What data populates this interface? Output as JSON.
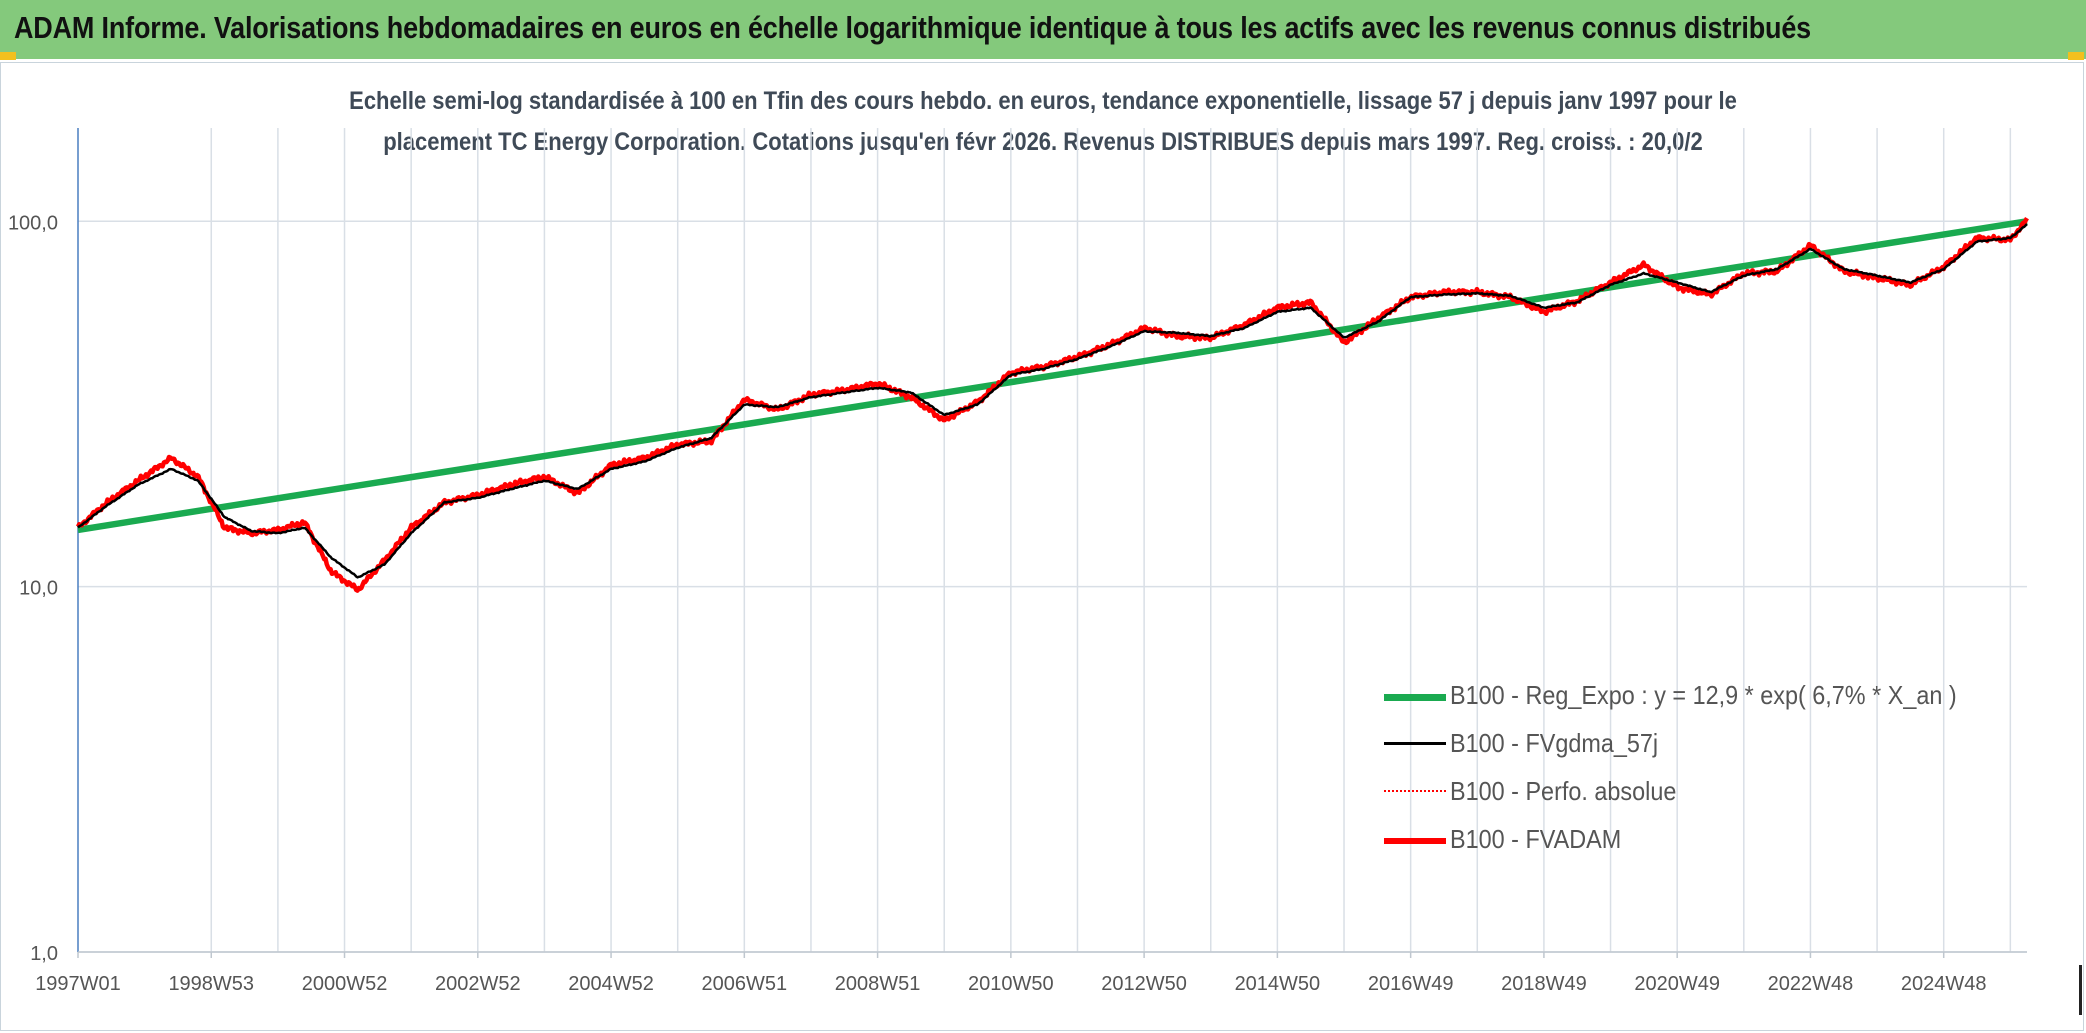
{
  "banner": {
    "title": "ADAM Informe. Valorisations hebdomadaires en euros en échelle logarithmique identique à tous les actifs avec les revenus connus distribués"
  },
  "colors": {
    "banner_bg": "#84c97c",
    "corner_marks": "#f2c01e",
    "reg_expo": "#1aaa50",
    "fvgdma": "#000000",
    "perfo": "#ff0000",
    "fvadam": "#ff0000",
    "grid": "#d9dfe6",
    "axis": "#4a7fc1"
  },
  "chart_data": {
    "type": "line",
    "title": "Echelle semi-log standardisée à 100 en Tfin des cours hebdo. en euros, tendance exponentielle, lissage 57 j depuis janv 1997 pour le",
    "subtitle": "placement TC Energy Corporation. Cotations jusqu'en févr 2026. Revenus DISTRIBUES depuis mars 1997. Reg. croiss. : 20,0/2",
    "xlabel": "",
    "ylabel": "",
    "y_scale": "log",
    "ylim": [
      1,
      180
    ],
    "xlim": [
      1997.0,
      2026.25
    ],
    "y_ticks": [
      1,
      10,
      100
    ],
    "y_tick_labels": [
      "1,0",
      "10,0",
      "100,0"
    ],
    "x_tick_labels": [
      "1997W01",
      "1998W53",
      "2000W52",
      "2002W52",
      "2004W52",
      "2006W51",
      "2008W51",
      "2010W50",
      "2012W50",
      "2014W50",
      "2016W49",
      "2018W49",
      "2020W49",
      "2022W48",
      "2024W48"
    ],
    "x_tick_positions": [
      1997.0,
      1999.0,
      2001.0,
      2003.0,
      2005.0,
      2007.0,
      2009.0,
      2011.0,
      2013.0,
      2015.0,
      2017.0,
      2019.0,
      2021.0,
      2023.0,
      2025.0
    ],
    "grid": "vertical",
    "legend_position": "bottom-right",
    "series": [
      {
        "name": "B100 - Reg_Expo : y = 12,9 * exp( 6,7% *  X_an )",
        "style": "solid-thick",
        "x": [
          1997.0,
          2026.25
        ],
        "y": [
          14.3,
          100.0
        ]
      },
      {
        "name": "B100 - FVgdma_57j",
        "style": "solid-thin",
        "x": [
          1997.0,
          1997.4,
          1997.9,
          1998.4,
          1998.8,
          1999.2,
          1999.6,
          2000.0,
          2000.4,
          2000.8,
          2001.2,
          2001.6,
          2002.0,
          2002.5,
          2003.0,
          2003.5,
          2004.0,
          2004.5,
          2005.0,
          2005.5,
          2006.0,
          2006.5,
          2007.0,
          2007.5,
          2008.0,
          2008.5,
          2009.0,
          2009.5,
          2010.0,
          2010.5,
          2011.0,
          2011.5,
          2012.0,
          2012.5,
          2013.0,
          2013.5,
          2014.0,
          2014.5,
          2015.0,
          2015.5,
          2016.0,
          2016.5,
          2017.0,
          2017.5,
          2018.0,
          2018.5,
          2019.0,
          2019.5,
          2020.0,
          2020.5,
          2021.0,
          2021.5,
          2022.0,
          2022.5,
          2023.0,
          2023.5,
          2024.0,
          2024.5,
          2025.0,
          2025.5,
          2026.0,
          2026.25
        ],
        "y": [
          14.5,
          16.5,
          19.0,
          21.0,
          19.5,
          15.5,
          14.2,
          14.0,
          14.5,
          12.0,
          10.6,
          11.5,
          14.0,
          17.0,
          17.5,
          18.5,
          19.5,
          18.5,
          21.0,
          22.0,
          24.0,
          25.5,
          31.5,
          31.0,
          33.0,
          34.0,
          35.0,
          34.0,
          29.5,
          31.5,
          38.0,
          39.5,
          42.0,
          45.5,
          50.0,
          49.5,
          48.5,
          51.0,
          56.5,
          58.0,
          48.0,
          53.0,
          62.0,
          63.0,
          63.5,
          62.5,
          58.0,
          60.0,
          67.0,
          72.0,
          68.0,
          64.0,
          71.0,
          74.0,
          84.0,
          74.0,
          71.0,
          68.0,
          74.0,
          88.0,
          90.0,
          98.0
        ]
      },
      {
        "name": "B100 - Perfo. absolue",
        "style": "dotted",
        "x": [
          1997.0,
          1997.4,
          1997.9,
          1998.4,
          1998.8,
          1999.2,
          1999.6,
          2000.0,
          2000.4,
          2000.8,
          2001.2,
          2001.6,
          2002.0,
          2002.5,
          2003.0,
          2003.5,
          2004.0,
          2004.5,
          2005.0,
          2005.5,
          2006.0,
          2006.5,
          2007.0,
          2007.5,
          2008.0,
          2008.5,
          2009.0,
          2009.5,
          2010.0,
          2010.5,
          2011.0,
          2011.5,
          2012.0,
          2012.5,
          2013.0,
          2013.5,
          2014.0,
          2014.5,
          2015.0,
          2015.5,
          2016.0,
          2016.5,
          2017.0,
          2017.5,
          2018.0,
          2018.5,
          2019.0,
          2019.5,
          2020.0,
          2020.5,
          2021.0,
          2021.5,
          2022.0,
          2022.5,
          2023.0,
          2023.5,
          2024.0,
          2024.5,
          2025.0,
          2025.5,
          2026.0,
          2026.25
        ],
        "y": [
          14.5,
          16.8,
          19.5,
          22.5,
          20.0,
          14.5,
          14.0,
          14.3,
          15.0,
          11.0,
          9.8,
          11.8,
          14.5,
          17.0,
          17.8,
          19.0,
          20.0,
          18.0,
          21.5,
          22.5,
          24.5,
          25.0,
          32.5,
          30.5,
          33.5,
          34.5,
          36.0,
          33.0,
          28.5,
          32.0,
          38.5,
          40.0,
          42.5,
          46.0,
          51.0,
          48.5,
          48.0,
          52.0,
          58.0,
          60.0,
          46.5,
          54.0,
          62.0,
          64.0,
          64.0,
          62.0,
          56.5,
          60.5,
          68.0,
          76.0,
          66.0,
          63.0,
          72.0,
          73.0,
          86.0,
          73.0,
          70.0,
          67.0,
          75.0,
          90.0,
          89.0,
          101.0
        ]
      },
      {
        "name": "B100 - FVADAM",
        "style": "solid-thick",
        "x": [
          1997.0,
          1997.4,
          1997.9,
          1998.4,
          1998.8,
          1999.2,
          1999.6,
          2000.0,
          2000.4,
          2000.8,
          2001.2,
          2001.6,
          2002.0,
          2002.5,
          2003.0,
          2003.5,
          2004.0,
          2004.5,
          2005.0,
          2005.5,
          2006.0,
          2006.5,
          2007.0,
          2007.5,
          2008.0,
          2008.5,
          2009.0,
          2009.5,
          2010.0,
          2010.5,
          2011.0,
          2011.5,
          2012.0,
          2012.5,
          2013.0,
          2013.5,
          2014.0,
          2014.5,
          2015.0,
          2015.5,
          2016.0,
          2016.5,
          2017.0,
          2017.5,
          2018.0,
          2018.5,
          2019.0,
          2019.5,
          2020.0,
          2020.5,
          2021.0,
          2021.5,
          2022.0,
          2022.5,
          2023.0,
          2023.5,
          2024.0,
          2024.5,
          2025.0,
          2025.5,
          2026.0,
          2026.25
        ],
        "y": [
          14.5,
          16.8,
          19.5,
          22.5,
          20.0,
          14.5,
          14.0,
          14.3,
          15.0,
          11.0,
          9.8,
          11.8,
          14.5,
          17.0,
          17.8,
          19.0,
          20.0,
          18.0,
          21.5,
          22.5,
          24.5,
          25.0,
          32.5,
          30.5,
          33.5,
          34.5,
          36.0,
          33.0,
          28.5,
          32.0,
          38.5,
          40.0,
          42.5,
          46.0,
          51.0,
          48.5,
          48.0,
          52.0,
          58.0,
          60.0,
          46.5,
          54.0,
          62.0,
          64.0,
          64.0,
          62.0,
          56.5,
          60.5,
          68.0,
          76.0,
          66.0,
          63.0,
          72.0,
          73.0,
          86.0,
          73.0,
          70.0,
          67.0,
          75.0,
          90.0,
          89.0,
          101.0
        ]
      }
    ]
  }
}
